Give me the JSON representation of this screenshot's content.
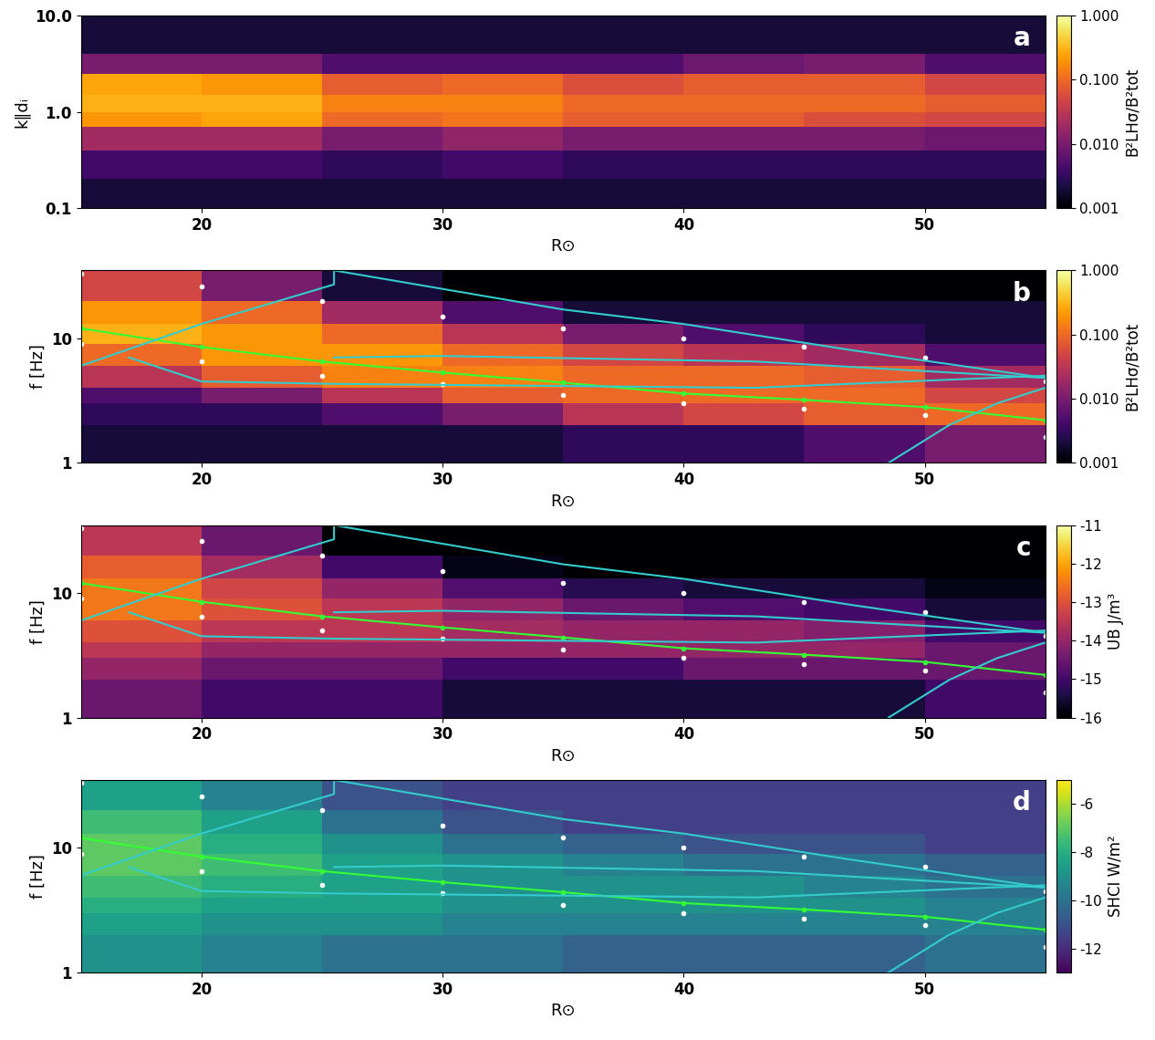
{
  "chart_data": [
    {
      "type": "heatmap",
      "panel_label": "a",
      "xlabel": "R⊙",
      "ylabel": "k∥dᵢ",
      "xlim": [
        15,
        55
      ],
      "xticks": [
        20,
        30,
        40,
        50
      ],
      "ylim": [
        0.1,
        10
      ],
      "log": "y",
      "yticks": [
        0.1,
        {
          "value": 1,
          "label": "1.0"
        },
        {
          "value": 10,
          "label": "10.0"
        }
      ],
      "color": "inferno",
      "x_edges": [
        15,
        20,
        25,
        30,
        35,
        40,
        45,
        50,
        55
      ],
      "y_edges": [
        0.1,
        0.2,
        0.4,
        0.7,
        1.0,
        1.5,
        2.5,
        4,
        10
      ],
      "cells": [
        [
          0.002,
          0.002,
          0.002,
          0.002,
          0.002,
          0.002,
          0.002,
          0.002
        ],
        [
          0.004,
          0.004,
          0.003,
          0.004,
          0.003,
          0.003,
          0.003,
          0.003
        ],
        [
          0.02,
          0.02,
          0.01,
          0.015,
          0.01,
          0.01,
          0.01,
          0.008
        ],
        [
          0.2,
          0.25,
          0.1,
          0.12,
          0.08,
          0.08,
          0.06,
          0.05
        ],
        [
          0.3,
          0.3,
          0.15,
          0.15,
          0.1,
          0.1,
          0.1,
          0.08
        ],
        [
          0.25,
          0.2,
          0.08,
          0.1,
          0.06,
          0.08,
          0.08,
          0.05
        ],
        [
          0.01,
          0.01,
          0.005,
          0.005,
          0.005,
          0.008,
          0.01,
          0.005
        ],
        [
          0.002,
          0.002,
          0.002,
          0.002,
          0.002,
          0.002,
          0.002,
          0.002
        ]
      ],
      "colorbar": {
        "label": "B²LHσ/B²tot",
        "range": [
          0.001,
          1
        ],
        "log": true,
        "ticks": [
          {
            "value": 0.001,
            "label": "0.001"
          },
          {
            "value": 0.01,
            "label": "0.010"
          },
          {
            "value": 0.1,
            "label": "0.100"
          },
          {
            "value": 1,
            "label": "1.000"
          }
        ]
      },
      "series": []
    },
    {
      "type": "heatmap",
      "panel_label": "b",
      "xlabel": "R⊙",
      "ylabel": "f [Hz]",
      "xlim": [
        15,
        55
      ],
      "xticks": [
        20,
        30,
        40,
        50
      ],
      "ylim": [
        1,
        35
      ],
      "log": "y",
      "yticks": [
        1,
        10
      ],
      "color": "inferno",
      "x_edges": [
        15,
        20,
        25,
        30,
        35,
        40,
        45,
        50,
        55
      ],
      "y_edges": [
        1,
        2,
        3,
        4,
        6,
        9,
        13,
        20,
        35
      ],
      "cells": [
        [
          0.002,
          0.002,
          0.002,
          0.002,
          0.003,
          0.003,
          0.005,
          0.01
        ],
        [
          0.003,
          0.003,
          0.005,
          0.01,
          0.03,
          0.05,
          0.08,
          0.1
        ],
        [
          0.005,
          0.01,
          0.03,
          0.08,
          0.1,
          0.1,
          0.1,
          0.05
        ],
        [
          0.03,
          0.08,
          0.15,
          0.15,
          0.1,
          0.1,
          0.08,
          0.02
        ],
        [
          0.1,
          0.2,
          0.2,
          0.1,
          0.05,
          0.03,
          0.02,
          0.005
        ],
        [
          0.3,
          0.2,
          0.1,
          0.03,
          0.01,
          0.005,
          0.003,
          0.002
        ],
        [
          0.2,
          0.1,
          0.02,
          0.005,
          0.002,
          0.002,
          0.002,
          0.002
        ],
        [
          0.05,
          0.01,
          0.002,
          0.001,
          0.001,
          0.001,
          0.001,
          0.001
        ]
      ],
      "colorbar": {
        "label": "B²LHσ/B²tot",
        "range": [
          0.001,
          1
        ],
        "log": true,
        "ticks": [
          {
            "value": 0.001,
            "label": "0.001"
          },
          {
            "value": 0.01,
            "label": "0.010"
          },
          {
            "value": 0.1,
            "label": "0.100"
          },
          {
            "value": 1,
            "label": "1.000"
          }
        ]
      },
      "series": [
        {
          "color": "#ffffff",
          "marker": "dot",
          "line_style": "none",
          "x": [
            15,
            20,
            25,
            30,
            35,
            40,
            45,
            50,
            55
          ],
          "values": [
            33,
            26,
            20,
            15,
            12,
            10,
            8.5,
            7,
            4.5
          ]
        },
        {
          "color": "#ffffff",
          "marker": "dot",
          "line_style": "none",
          "x": [
            15,
            20,
            25,
            30,
            35,
            40,
            45,
            50,
            55
          ],
          "values": [
            9,
            6.5,
            5,
            4.3,
            3.5,
            3,
            2.7,
            2.4,
            1.6
          ]
        },
        {
          "color": "#33ff33",
          "marker": "dot",
          "line_style": "solid",
          "x": [
            15,
            20,
            25,
            30,
            35,
            40,
            45,
            50,
            55
          ],
          "values": [
            12,
            8.5,
            6.5,
            5.3,
            4.4,
            3.6,
            3.2,
            2.8,
            2.2
          ]
        },
        {
          "color": "#33cccc",
          "line_style": "solid",
          "x": [
            15,
            20,
            25.5,
            25.5,
            35,
            40,
            47,
            55
          ],
          "values": [
            6,
            13,
            27,
            35,
            17,
            13,
            8,
            4.8
          ]
        },
        {
          "color": "#33cccc",
          "line_style": "solid",
          "x": [
            25.5,
            30,
            43,
            55
          ],
          "values": [
            7,
            7.2,
            6.5,
            4.8
          ]
        },
        {
          "color": "#33cccc",
          "line_style": "solid",
          "x": [
            17,
            20,
            25.5,
            43,
            55
          ],
          "values": [
            7,
            4.5,
            4.3,
            4,
            5
          ]
        },
        {
          "color": "#33cccc",
          "line_style": "solid",
          "x": [
            48.5,
            51,
            53,
            55
          ],
          "values": [
            1,
            2,
            3,
            4
          ]
        }
      ]
    },
    {
      "type": "heatmap",
      "panel_label": "c",
      "xlabel": "R⊙",
      "ylabel": "f [Hz]",
      "xlim": [
        15,
        55
      ],
      "xticks": [
        20,
        30,
        40,
        50
      ],
      "ylim": [
        1,
        35
      ],
      "log": "y",
      "yticks": [
        1,
        10
      ],
      "color": "inferno",
      "x_edges": [
        15,
        20,
        25,
        30,
        35,
        40,
        45,
        50,
        55
      ],
      "y_edges": [
        1,
        2,
        3,
        4,
        6,
        9,
        13,
        20,
        35
      ],
      "cells": [
        [
          -14.5,
          -15,
          -15,
          -15.5,
          -15.5,
          -15.5,
          -15.5,
          -15
        ],
        [
          -14,
          -14.5,
          -14.5,
          -15,
          -15,
          -14.5,
          -14.5,
          -14.5
        ],
        [
          -13.5,
          -14,
          -14,
          -14,
          -14,
          -14,
          -14,
          -14.5
        ],
        [
          -13,
          -13.5,
          -13.5,
          -13.8,
          -14,
          -14,
          -14.2,
          -15
        ],
        [
          -12.5,
          -13,
          -13.5,
          -14,
          -14.5,
          -14.8,
          -15,
          -15.5
        ],
        [
          -12.5,
          -13.2,
          -14,
          -14.8,
          -15.3,
          -15.5,
          -15.5,
          -15.8
        ],
        [
          -12.8,
          -13.8,
          -15,
          -15.8,
          -16,
          -16,
          -16,
          -16
        ],
        [
          -13.5,
          -14.5,
          -16,
          -16,
          -16,
          -16,
          -16,
          -16
        ]
      ],
      "colorbar": {
        "label": "UB J/m³",
        "range": [
          -16,
          -11
        ],
        "log": false,
        "ticks": [
          -16,
          -15,
          -14,
          -13,
          -12,
          -11
        ]
      },
      "series": [
        {
          "color": "#ffffff",
          "marker": "dot",
          "line_style": "none",
          "x": [
            15,
            20,
            25,
            30,
            35,
            40,
            45,
            50,
            55
          ],
          "values": [
            33,
            26,
            20,
            15,
            12,
            10,
            8.5,
            7,
            4.5
          ]
        },
        {
          "color": "#ffffff",
          "marker": "dot",
          "line_style": "none",
          "x": [
            15,
            20,
            25,
            30,
            35,
            40,
            45,
            50,
            55
          ],
          "values": [
            9,
            6.5,
            5,
            4.3,
            3.5,
            3,
            2.7,
            2.4,
            1.6
          ]
        },
        {
          "color": "#33ff33",
          "marker": "dot",
          "line_style": "solid",
          "x": [
            15,
            20,
            25,
            30,
            35,
            40,
            45,
            50,
            55
          ],
          "values": [
            12,
            8.5,
            6.5,
            5.3,
            4.4,
            3.6,
            3.2,
            2.8,
            2.2
          ]
        },
        {
          "color": "#33cccc",
          "line_style": "solid",
          "x": [
            15,
            20,
            25.5,
            25.5,
            35,
            40,
            47,
            55
          ],
          "values": [
            6,
            13,
            27,
            35,
            17,
            13,
            8,
            4.8
          ]
        },
        {
          "color": "#33cccc",
          "line_style": "solid",
          "x": [
            25.5,
            30,
            43,
            55
          ],
          "values": [
            7,
            7.2,
            6.5,
            4.8
          ]
        },
        {
          "color": "#33cccc",
          "line_style": "solid",
          "x": [
            17,
            20,
            25.5,
            43,
            55
          ],
          "values": [
            7,
            4.5,
            4.3,
            4,
            5
          ]
        },
        {
          "color": "#33cccc",
          "line_style": "solid",
          "x": [
            48.5,
            51,
            53,
            55
          ],
          "values": [
            1,
            2,
            3,
            4
          ]
        }
      ]
    },
    {
      "type": "heatmap",
      "panel_label": "d",
      "xlabel": "R⊙",
      "ylabel": "f [Hz]",
      "xlim": [
        15,
        55
      ],
      "xticks": [
        20,
        30,
        40,
        50
      ],
      "ylim": [
        1,
        35
      ],
      "log": "y",
      "yticks": [
        1,
        10
      ],
      "color": "viridis",
      "x_edges": [
        15,
        20,
        25,
        30,
        35,
        40,
        45,
        50,
        55
      ],
      "y_edges": [
        1,
        2,
        3,
        4,
        6,
        9,
        13,
        20,
        35
      ],
      "cells": [
        [
          -9,
          -9.5,
          -10,
          -10,
          -10.5,
          -10.5,
          -10.5,
          -10
        ],
        [
          -8.5,
          -9,
          -9,
          -9.5,
          -9.5,
          -9.5,
          -9.5,
          -9.5
        ],
        [
          -8,
          -8.5,
          -8.5,
          -9,
          -9,
          -9,
          -9,
          -9.5
        ],
        [
          -7.5,
          -8,
          -8.5,
          -9,
          -9,
          -9,
          -9.5,
          -10
        ],
        [
          -7,
          -7.5,
          -8.5,
          -9,
          -9.5,
          -10,
          -10,
          -10.5
        ],
        [
          -7,
          -8,
          -9,
          -10,
          -10.5,
          -11,
          -11,
          -11.5
        ],
        [
          -7.5,
          -8.5,
          -10,
          -11,
          -11.5,
          -11.5,
          -11.5,
          -11.5
        ],
        [
          -8.5,
          -9.5,
          -11,
          -11.5,
          -11.5,
          -11.5,
          -11.5,
          -11.5
        ]
      ],
      "colorbar": {
        "label": "SHCI W/m²",
        "range": [
          -13,
          -5
        ],
        "log": false,
        "ticks": [
          -12,
          -10,
          -8,
          -6
        ]
      },
      "series": [
        {
          "color": "#ffffff",
          "marker": "dot",
          "line_style": "none",
          "x": [
            15,
            20,
            25,
            30,
            35,
            40,
            45,
            50,
            55
          ],
          "values": [
            33,
            26,
            20,
            15,
            12,
            10,
            8.5,
            7,
            4.5
          ]
        },
        {
          "color": "#ffffff",
          "marker": "dot",
          "line_style": "none",
          "x": [
            15,
            20,
            25,
            30,
            35,
            40,
            45,
            50,
            55
          ],
          "values": [
            9,
            6.5,
            5,
            4.3,
            3.5,
            3,
            2.7,
            2.4,
            1.6
          ]
        },
        {
          "color": "#33ff33",
          "marker": "dot",
          "line_style": "solid",
          "x": [
            15,
            20,
            25,
            30,
            35,
            40,
            45,
            50,
            55
          ],
          "values": [
            12,
            8.5,
            6.5,
            5.3,
            4.4,
            3.6,
            3.2,
            2.8,
            2.2
          ]
        },
        {
          "color": "#33cccc",
          "line_style": "solid",
          "x": [
            15,
            20,
            25.5,
            25.5,
            35,
            40,
            47,
            55
          ],
          "values": [
            6,
            13,
            27,
            35,
            17,
            13,
            8,
            4.8
          ]
        },
        {
          "color": "#33cccc",
          "line_style": "solid",
          "x": [
            25.5,
            30,
            43,
            55
          ],
          "values": [
            7,
            7.2,
            6.5,
            4.8
          ]
        },
        {
          "color": "#33cccc",
          "line_style": "solid",
          "x": [
            17,
            20,
            25.5,
            43,
            55
          ],
          "values": [
            7,
            4.5,
            4.3,
            4,
            5
          ]
        },
        {
          "color": "#33cccc",
          "line_style": "solid",
          "x": [
            48.5,
            51,
            53,
            55
          ],
          "values": [
            1,
            2,
            3,
            4
          ]
        }
      ]
    }
  ]
}
